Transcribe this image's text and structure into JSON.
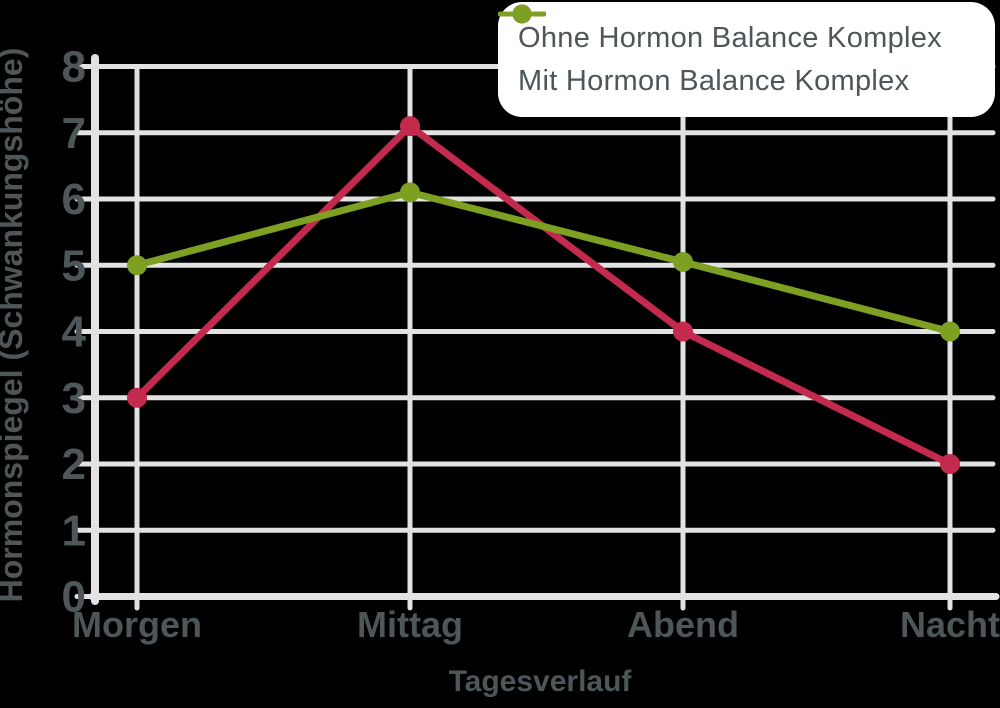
{
  "chart_data": {
    "type": "line",
    "title": "",
    "x": [
      "Morgen",
      "Mittag",
      "Abend",
      "Nacht"
    ],
    "xlabel": "Tagesverlauf",
    "ylabel": "Hormonspiegel (Schwankungshöhe)",
    "ylim": [
      0,
      8
    ],
    "yticks": [
      0,
      1,
      2,
      3,
      4,
      5,
      6,
      7,
      8
    ],
    "grid": true,
    "legend_position": "top-right",
    "series": [
      {
        "name": "Ohne Hormon Balance Komplex",
        "color": "#c42a4d",
        "values": [
          3,
          7.1,
          4,
          2
        ]
      },
      {
        "name": "Mit Hormon Balance Komplex",
        "color": "#7da022",
        "values": [
          5,
          6.1,
          5.05,
          4
        ]
      }
    ]
  },
  "colors": {
    "background": "#000000",
    "grid": "#e2e2e2",
    "text": "#4e565a",
    "legend_background": "#ffffff"
  }
}
